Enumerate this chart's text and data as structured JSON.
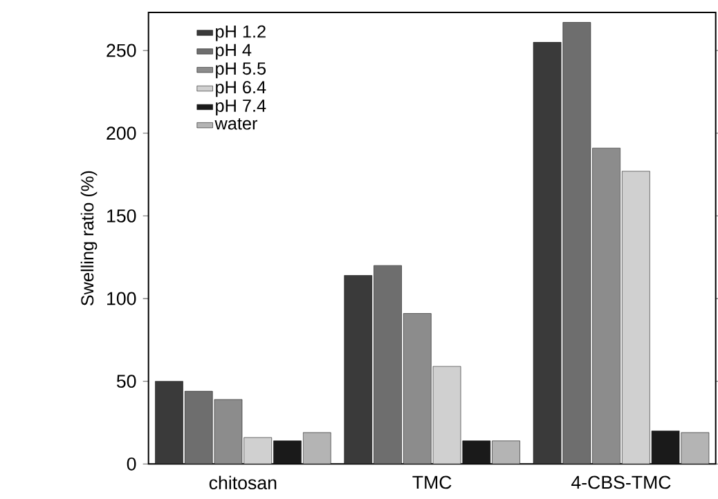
{
  "chart_data": {
    "type": "bar",
    "ylabel": "Swelling ratio (%)",
    "categories": [
      "chitosan",
      "TMC",
      "4-CBS-TMC"
    ],
    "series": [
      {
        "name": "pH 1.2",
        "color": "#3a3a3a",
        "values": [
          50,
          114,
          255
        ]
      },
      {
        "name": "pH 4",
        "color": "#6e6e6e",
        "values": [
          44,
          120,
          267
        ]
      },
      {
        "name": "pH 5.5",
        "color": "#8c8c8c",
        "values": [
          39,
          91,
          191
        ]
      },
      {
        "name": "pH 6.4",
        "color": "#d0d0d0",
        "values": [
          16,
          59,
          177
        ]
      },
      {
        "name": "pH 7.4",
        "color": "#1a1a1a",
        "values": [
          14,
          14,
          20
        ]
      },
      {
        "name": "water",
        "color": "#b4b4b4",
        "values": [
          19,
          14,
          19
        ]
      }
    ],
    "ylim": [
      0,
      273
    ],
    "yticks": [
      0,
      50,
      100,
      150,
      200,
      250
    ],
    "grid": false,
    "legend": "top left"
  }
}
